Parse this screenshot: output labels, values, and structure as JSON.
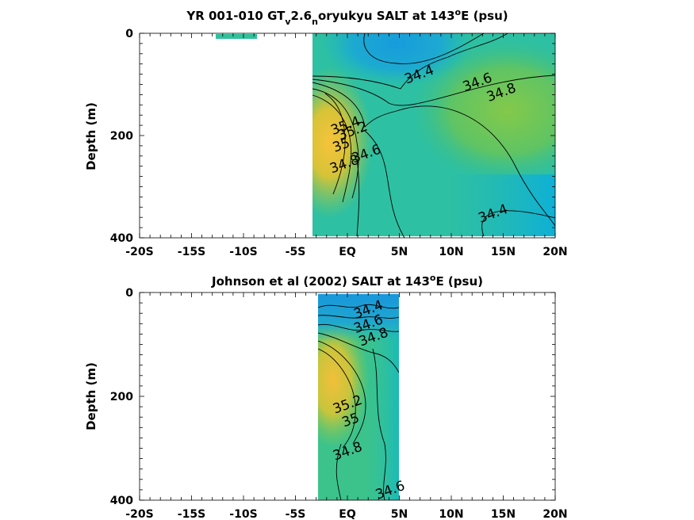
{
  "chart_data": [
    {
      "type": "contour",
      "title": {
        "main": "YR 001-010 GT",
        "sub_v": "v",
        "mid": "2.6",
        "sub_n": "n",
        "rest": "oryukyu SALT at 143",
        "sup": "o",
        "end": "E (psu)"
      },
      "xlabel": "",
      "ylabel": "Depth (m)",
      "x_ticks": [
        "-20S",
        "-15S",
        "-10S",
        "-5S",
        "EQ",
        "5N",
        "10N",
        "15N",
        "20N"
      ],
      "y_ticks": [
        "0",
        "200",
        "400"
      ],
      "xlim": [
        -20,
        20
      ],
      "ylim": [
        0,
        400
      ],
      "y_reversed": true,
      "data_extent_lat": [
        -3,
        20
      ],
      "contour_labels": [
        {
          "text": "34.4",
          "lat": 6.9,
          "depth": 80
        },
        {
          "text": "34.6",
          "lat": 12.5,
          "depth": 95
        },
        {
          "text": "34.8",
          "lat": 14.8,
          "depth": 115
        },
        {
          "text": "35.4",
          "lat": -0.2,
          "depth": 180
        },
        {
          "text": "35.2",
          "lat": 0.5,
          "depth": 190
        },
        {
          "text": "35",
          "lat": -0.6,
          "depth": 218
        },
        {
          "text": "34.8",
          "lat": -0.3,
          "depth": 255
        },
        {
          "text": "34.6",
          "lat": 1.8,
          "depth": 235
        },
        {
          "text": "34.4",
          "lat": 14.0,
          "depth": 352
        }
      ]
    },
    {
      "type": "contour",
      "title": {
        "main": "Johnson et al (2002) SALT at 143",
        "sup": "o",
        "end": "E (psu)"
      },
      "xlabel": "",
      "ylabel": "Depth (m)",
      "x_ticks": [
        "-20S",
        "-15S",
        "-10S",
        "-5S",
        "EQ",
        "5N",
        "10N",
        "15N",
        "20N"
      ],
      "y_ticks": [
        "0",
        "200",
        "400"
      ],
      "xlim": [
        -20,
        20
      ],
      "ylim": [
        0,
        400
      ],
      "y_reversed": true,
      "data_extent_lat": [
        -2.5,
        5.3
      ],
      "contour_labels": [
        {
          "text": "34.4",
          "lat": 2.0,
          "depth": 32
        },
        {
          "text": "34.6",
          "lat": 2.0,
          "depth": 60
        },
        {
          "text": "34.8",
          "lat": 2.5,
          "depth": 85
        },
        {
          "text": "35.2",
          "lat": 0.0,
          "depth": 215
        },
        {
          "text": "35",
          "lat": 0.3,
          "depth": 245
        },
        {
          "text": "34.8",
          "lat": 0.0,
          "depth": 305
        },
        {
          "text": "34.6",
          "lat": 4.1,
          "depth": 380
        }
      ]
    }
  ]
}
